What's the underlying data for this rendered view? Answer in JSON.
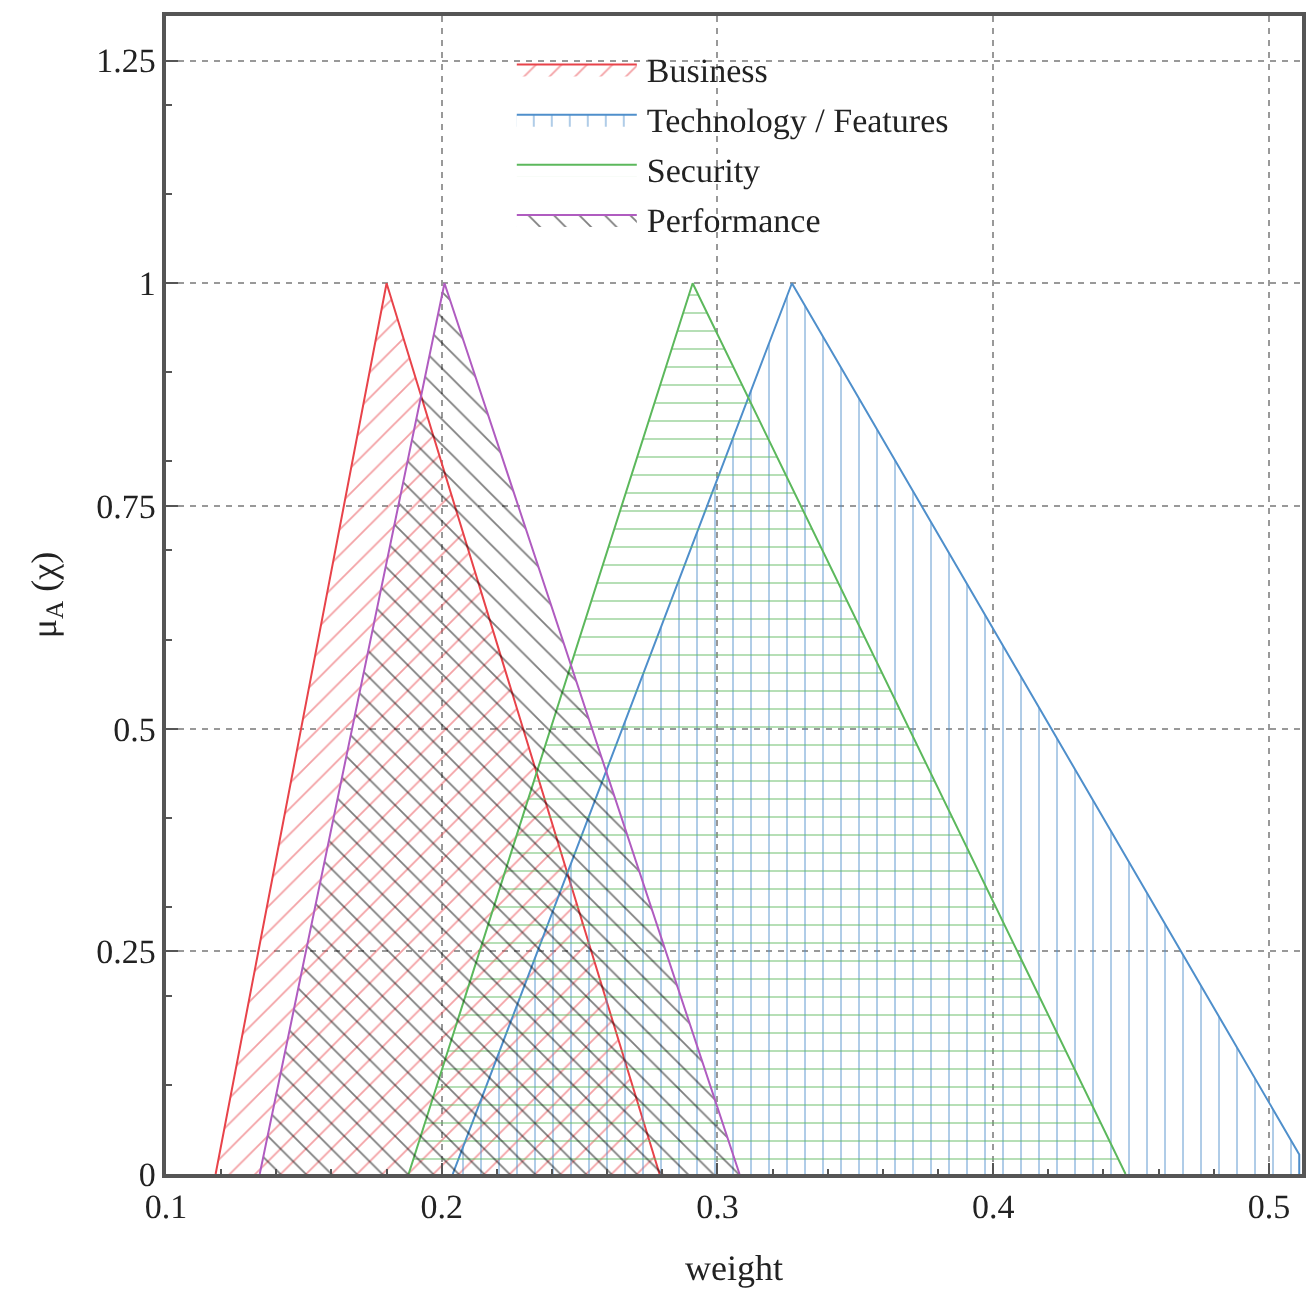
{
  "chart_data": {
    "type": "area",
    "xlabel": "weight",
    "ylabel": "μ$_{A}$ (χ)",
    "xlim": [
      0.1,
      0.512
    ],
    "ylim": [
      0,
      1.3
    ],
    "xticks": [
      0.1,
      0.2,
      0.3,
      0.4,
      0.5
    ],
    "yticks": [
      0,
      0.25,
      0.5,
      0.75,
      1,
      1.25
    ],
    "grid": true,
    "legend": "top",
    "series": [
      {
        "name": "Business",
        "color": "#e8434a",
        "x": [
          0.118,
          0.18,
          0.279
        ],
        "values": [
          0,
          1,
          0
        ]
      },
      {
        "name": "Technology / Features",
        "color": "#4f8fcb",
        "x": [
          0.204,
          0.327,
          0.511
        ],
        "values": [
          0,
          1,
          0.022
        ]
      },
      {
        "name": "Security",
        "color": "#5cb85c",
        "x": [
          0.188,
          0.291,
          0.448
        ],
        "values": [
          0,
          1,
          0
        ]
      },
      {
        "name": "Performance",
        "color": "#b05cc0",
        "x": [
          0.134,
          0.201,
          0.308
        ],
        "values": [
          0,
          1,
          0
        ]
      }
    ]
  }
}
